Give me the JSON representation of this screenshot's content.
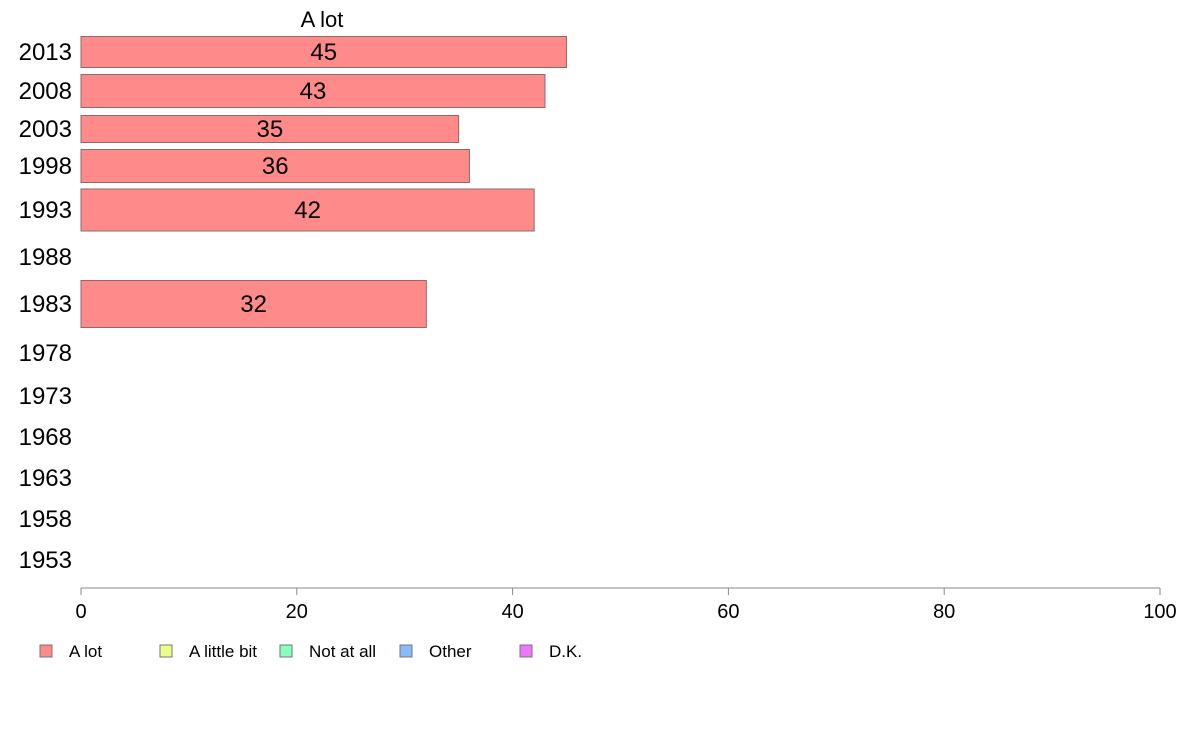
{
  "chart_data": {
    "type": "bar",
    "orientation": "horizontal",
    "series_header": "A lot",
    "categories": [
      "2013",
      "2008",
      "2003",
      "1998",
      "1993",
      "1988",
      "1983",
      "1978",
      "1973",
      "1968",
      "1963",
      "1958",
      "1953"
    ],
    "series": [
      {
        "name": "A lot",
        "color": "#ff8a8a",
        "values": [
          45,
          43,
          35,
          36,
          42,
          null,
          32,
          null,
          null,
          null,
          null,
          null,
          null
        ]
      }
    ],
    "value_labels": [
      "45",
      "43",
      "35",
      "36",
      "42",
      "",
      "32",
      "",
      "",
      "",
      "",
      "",
      ""
    ],
    "xlim": [
      0,
      100
    ],
    "x_ticks": [
      "0",
      "20",
      "40",
      "60",
      "80",
      "100"
    ],
    "legend": {
      "placement": "bottom",
      "entries": [
        {
          "label": "A lot",
          "color": "#ff8a8a"
        },
        {
          "label": "A little bit",
          "color": "#eeff88"
        },
        {
          "label": "Not at all",
          "color": "#88ffbb"
        },
        {
          "label": "Other",
          "color": "#88bbff"
        },
        {
          "label": "D.K.",
          "color": "#ee77ff"
        }
      ]
    },
    "grid": false
  }
}
